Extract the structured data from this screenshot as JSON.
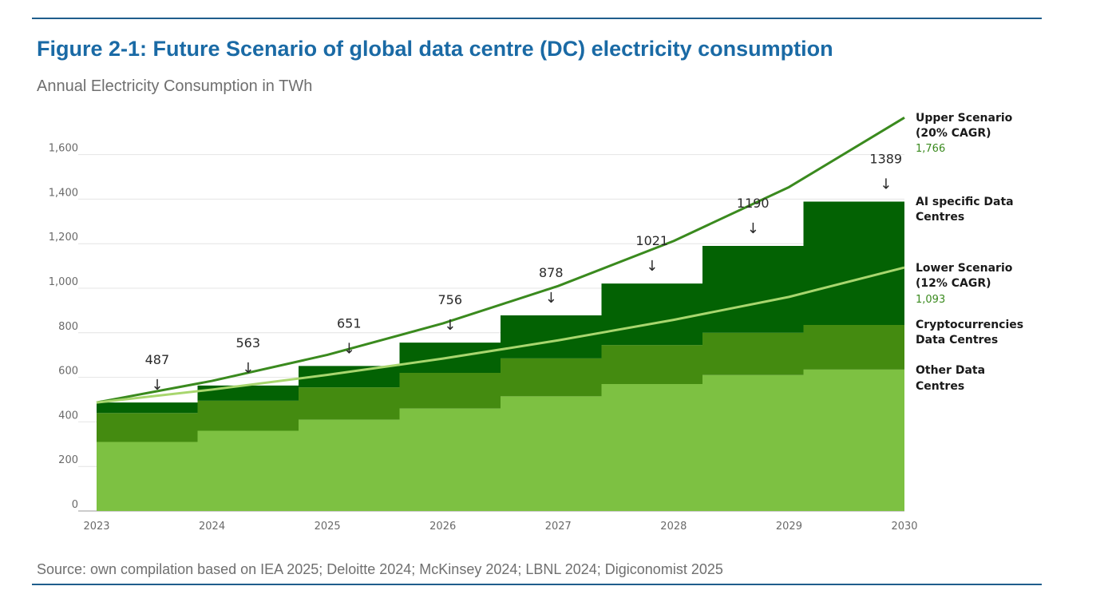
{
  "figure": {
    "title": "Figure 2-1: Future Scenario of global data centre (DC) electricity consumption",
    "subtitle": "Annual Electricity Consumption in TWh",
    "source": "Source: own compilation based on IEA 2025; Deloitte 2024; McKinsey 2024; LBNL 2024; Digiconomist 2025"
  },
  "chart_data": {
    "type": "area",
    "title": "",
    "xlabel": "",
    "ylabel": "",
    "x": [
      "2023",
      "2024",
      "2025",
      "2026",
      "2027",
      "2028",
      "2029",
      "2030"
    ],
    "ylim": [
      0,
      1766
    ],
    "y_ticks": [
      0,
      200,
      400,
      600,
      800,
      1000,
      1200,
      1400,
      1600
    ],
    "y_tick_labels": [
      "0",
      "200",
      "400",
      "600",
      "800",
      "1,000",
      "1,200",
      "1,400",
      "1,600"
    ],
    "grid": true,
    "legend_position": "right",
    "stacked_series": [
      {
        "name": "Other Data Centres",
        "color": "#7dc142",
        "values": [
          310,
          360,
          410,
          460,
          515,
          570,
          610,
          635
        ]
      },
      {
        "name": "Cryptocurrencies Data Centres",
        "color": "#448b10",
        "values": [
          130,
          135,
          145,
          160,
          170,
          175,
          190,
          200
        ]
      },
      {
        "name": "AI specific Data Centres",
        "color": "#036203",
        "values": [
          47,
          68,
          96,
          136,
          193,
          276,
          390,
          554
        ]
      }
    ],
    "totals": [
      487,
      563,
      651,
      756,
      878,
      1021,
      1190,
      1389
    ],
    "total_labels": [
      "487",
      "563",
      "651",
      "756",
      "878",
      "1021",
      "1190",
      "1389"
    ],
    "line_series": [
      {
        "name": "Upper Scenario (20% CAGR)",
        "name_lines": [
          "Upper Scenario",
          "(20% CAGR)"
        ],
        "end_label": "1,766",
        "color": "#3a8a1e",
        "values": [
          487,
          584,
          701,
          842,
          1010,
          1212,
          1454,
          1766
        ]
      },
      {
        "name": "Lower Scenario (12% CAGR)",
        "name_lines": [
          "Lower Scenario",
          "(12% CAGR)"
        ],
        "end_label": "1,093",
        "color": "#a8d66e",
        "values": [
          487,
          545,
          611,
          684,
          766,
          858,
          961,
          1093
        ]
      }
    ],
    "area_labels": [
      {
        "lines": [
          "AI specific Data",
          "Centres"
        ]
      },
      {
        "lines": [
          "Cryptocurrencies",
          "Data Centres"
        ]
      },
      {
        "lines": [
          "Other Data",
          "Centres"
        ]
      }
    ],
    "arrow_glyph": "↓"
  }
}
